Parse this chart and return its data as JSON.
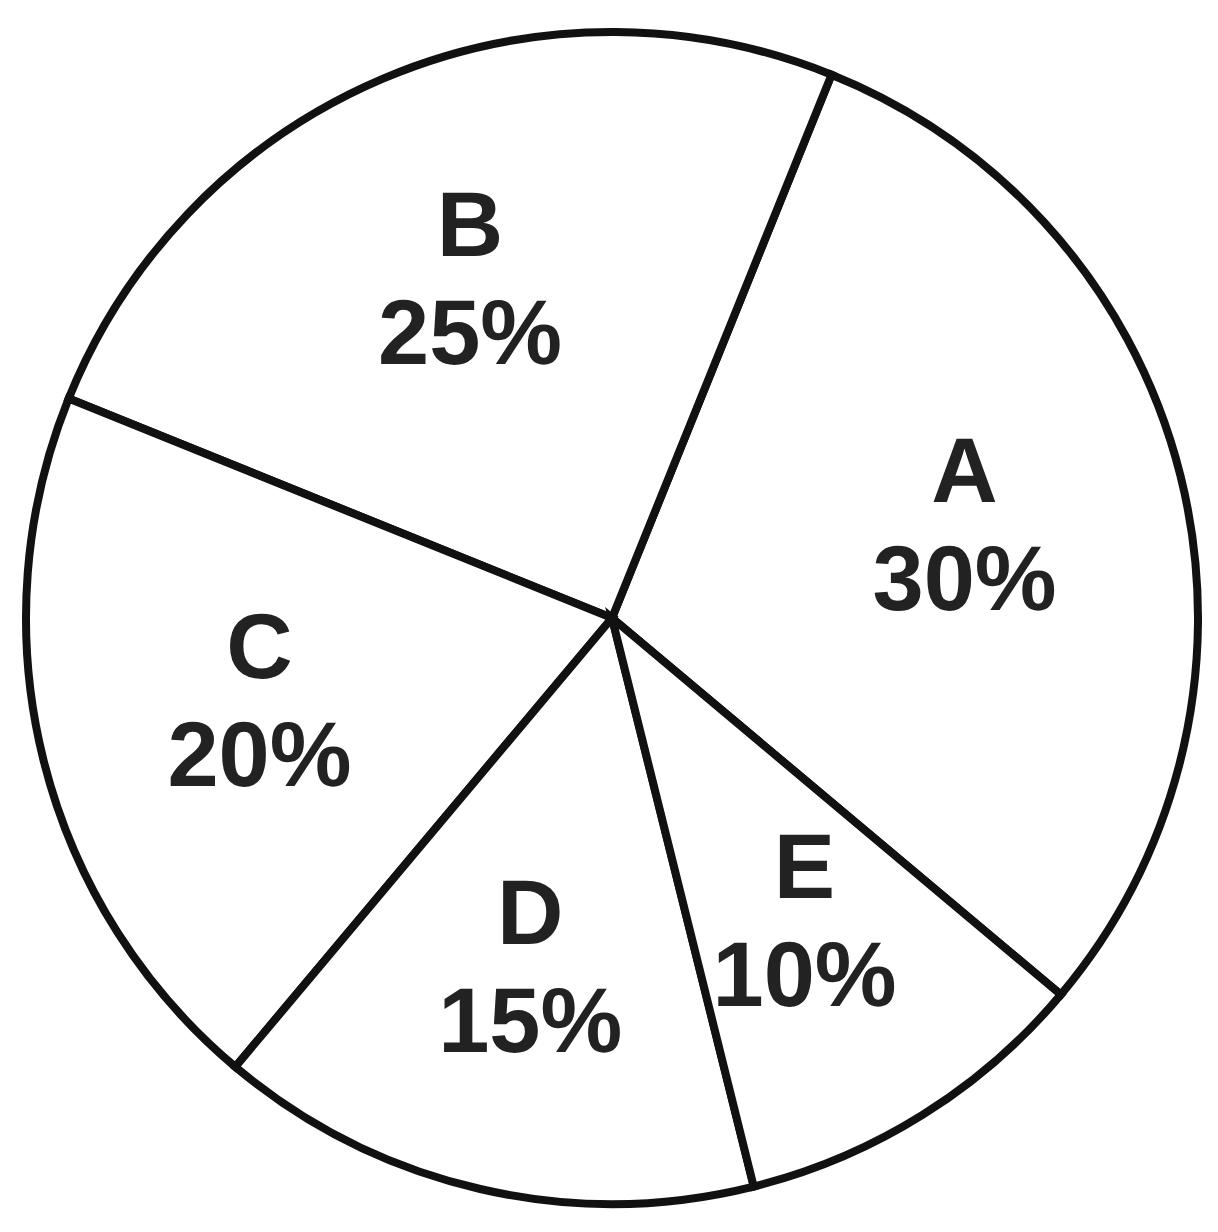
{
  "chart_data": {
    "type": "pie",
    "categories": [
      "A",
      "B",
      "C",
      "D",
      "E"
    ],
    "values": [
      30,
      25,
      20,
      15,
      10
    ],
    "colors": [
      "#ffffff",
      "#ffffff",
      "#ffffff",
      "#ffffff",
      "#ffffff"
    ],
    "value_labels": [
      "30%",
      "25%",
      "20%",
      "15%",
      "10%"
    ],
    "legend": false
  }
}
